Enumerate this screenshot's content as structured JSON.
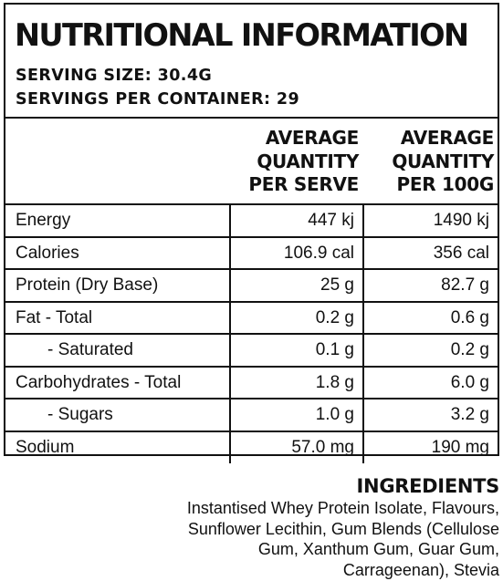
{
  "title": "NUTRITIONAL INFORMATION",
  "serving_size": "SERVING SIZE: 30.4G",
  "servings_per_container": "SERVINGS PER CONTAINER: 29",
  "columns": [
    {
      "lines": [
        "AVERAGE",
        "QUANTITY",
        "PER SERVE"
      ]
    },
    {
      "lines": [
        "AVERAGE",
        "QUANTITY",
        "PER 100G"
      ]
    }
  ],
  "rows": [
    {
      "label": "Energy",
      "per_serve": "447 kj",
      "per_100g": "1490 kj"
    },
    {
      "label": "Calories",
      "per_serve": "106.9 cal",
      "per_100g": "356 cal"
    },
    {
      "label": "Protein (Dry Base)",
      "per_serve": "25 g",
      "per_100g": "82.7 g"
    },
    {
      "label": "Fat - Total",
      "per_serve": "0.2 g",
      "per_100g": "0.6 g"
    },
    {
      "label": "- Saturated",
      "per_serve": "0.1 g",
      "per_100g": "0.2 g"
    },
    {
      "label": "Carbohydrates - Total",
      "per_serve": "1.8 g",
      "per_100g": "6.0 g"
    },
    {
      "label": "- Sugars",
      "per_serve": "1.0 g",
      "per_100g": "3.2 g"
    },
    {
      "label": "Sodium",
      "per_serve": "57.0 mg",
      "per_100g": "190 mg"
    }
  ],
  "ingredients": {
    "heading": "INGREDIENTS",
    "lines": [
      "Instantised Whey Protein Isolate, Flavours,",
      "Sunflower Lecithin, Gum Blends (Cellulose",
      "Gum, Xanthum Gum, Guar Gum,",
      "Carrageenan), Stevia"
    ]
  }
}
